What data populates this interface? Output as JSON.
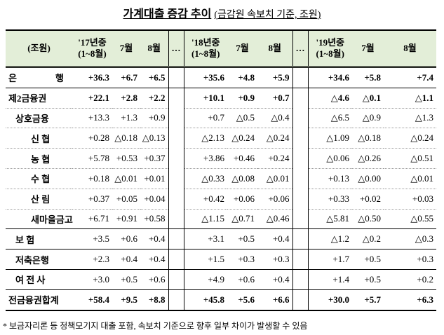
{
  "title": "가계대출 증감 추이",
  "unit_note": "(금감원 속보치 기준, 조원)",
  "table": {
    "header": [
      "(조원)",
      "'17년중\n(1~8월)",
      "7월",
      "8월",
      "…",
      "'18년중\n(1~8월)",
      "7월",
      "8월",
      "…",
      "'19년중\n(1~8월)",
      "7월",
      "8월"
    ],
    "rows": [
      {
        "label": "은 행",
        "values": [
          "+36.3",
          "+6.7",
          "+6.5",
          "+35.6",
          "+4.8",
          "+5.9",
          "+34.6",
          "+5.8",
          "+7.4"
        ]
      },
      {
        "label": "제2금융권",
        "values": [
          "+22.1",
          "+2.8",
          "+2.2",
          "+10.1",
          "+0.9",
          "+0.7",
          "△4.6",
          "△0.1",
          "△1.1"
        ]
      },
      {
        "label": "상호금융",
        "values": [
          "+13.3",
          "+1.3",
          "+0.9",
          "+0.7",
          "△0.5",
          "△0.4",
          "△6.5",
          "△0.9",
          "△1.3"
        ]
      },
      {
        "label": "신 협",
        "values": [
          "+0.28",
          "△0.18",
          "△0.13",
          "△2.13",
          "△0.24",
          "△0.24",
          "△1.09",
          "△0.18",
          "△0.24"
        ]
      },
      {
        "label": "농 협",
        "values": [
          "+5.78",
          "+0.53",
          "+0.37",
          "+3.86",
          "+0.46",
          "+0.24",
          "△0.06",
          "△0.26",
          "△0.51"
        ]
      },
      {
        "label": "수 협",
        "values": [
          "+0.18",
          "△0.01",
          "+0.01",
          "△0.33",
          "△0.08",
          "△0.01",
          "+0.13",
          "△0.00",
          "△0.01"
        ]
      },
      {
        "label": "산 림",
        "values": [
          "+0.37",
          "+0.05",
          "+0.04",
          "+0.42",
          "+0.06",
          "+0.06",
          "+0.33",
          "+0.02",
          "+0.03"
        ]
      },
      {
        "label": "새마을금고",
        "values": [
          "+6.71",
          "+0.91",
          "+0.58",
          "△1.15",
          "△0.71",
          "△0.46",
          "△5.81",
          "△0.50",
          "△0.55"
        ]
      },
      {
        "label": "보 험",
        "values": [
          "+3.5",
          "+0.6",
          "+0.4",
          "+3.1",
          "+0.5",
          "+0.4",
          "△1.2",
          "△0.2",
          "△0.3"
        ]
      },
      {
        "label": "저축은행",
        "values": [
          "+2.3",
          "+0.4",
          "+0.4",
          "+1.5",
          "+0.3",
          "+0.3",
          "+1.7",
          "+0.5",
          "+0.3"
        ]
      },
      {
        "label": "여 전 사",
        "values": [
          "+3.0",
          "+0.5",
          "+0.6",
          "+4.9",
          "+0.6",
          "+0.4",
          "+1.4",
          "+0.5",
          "+0.2"
        ]
      },
      {
        "label": "전금융권합계",
        "values": [
          "+58.4",
          "+9.5",
          "+8.8",
          "+45.8",
          "+5.6",
          "+6.6",
          "+30.0",
          "+5.7",
          "+6.3"
        ]
      }
    ]
  },
  "footnote": "* 보금자리론 등 정책모기지 대출 포함, 속보치 기준으로 향후 일부 차이가 발생할 수 있음"
}
